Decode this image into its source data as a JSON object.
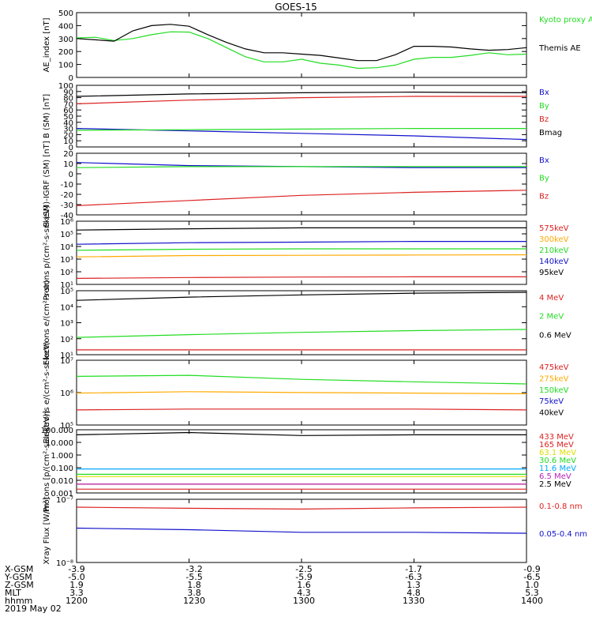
{
  "title": "GOES-15",
  "date_label": "2019 May 02",
  "orbit_rows": [
    "X-GSM",
    "Y-GSM",
    "Z-GSM",
    "MLT",
    "hhmm"
  ],
  "orbit_columns": [
    {
      "values": [
        "-3.9",
        "-5.0",
        "1.9",
        "3.3",
        "1200"
      ]
    },
    {
      "values": [
        "-3.2",
        "-5.5",
        "1.8",
        "3.8",
        "1230"
      ]
    },
    {
      "values": [
        "-2.5",
        "-5.9",
        "1.6",
        "4.3",
        "1300"
      ]
    },
    {
      "values": [
        "-1.7",
        "-6.3",
        "1.3",
        "4.8",
        "1330"
      ]
    },
    {
      "values": [
        "-0.9",
        "-6.5",
        "1.0",
        "5.3",
        "1400"
      ]
    }
  ],
  "colors": {
    "black": "#000000",
    "green": "#22dd22",
    "red": "#dd2222",
    "blue": "#1111cc",
    "orange": "#ffaa00",
    "yellow": "#dddd00",
    "cyan": "#00aaff",
    "magenta": "#bb22bb"
  },
  "chart_data": [
    {
      "type": "line",
      "ylabel": "AE_index [nT]",
      "yscale": "linear",
      "ylim": [
        0,
        500
      ],
      "yticks": [
        "0",
        "100",
        "200",
        "300",
        "400",
        "500"
      ],
      "series": [
        {
          "name": "Kyoto proxy AE",
          "color": "#22dd22",
          "x": [
            1200,
            1205,
            1210,
            1215,
            1220,
            1225,
            1230,
            1235,
            1240,
            1245,
            1250,
            1255,
            1300,
            1305,
            1310,
            1315,
            1320,
            1325,
            1330,
            1335,
            1340,
            1345,
            1350,
            1355,
            1400
          ],
          "y": [
            305,
            310,
            285,
            300,
            330,
            352,
            350,
            300,
            230,
            160,
            120,
            120,
            140,
            110,
            95,
            70,
            75,
            95,
            140,
            155,
            155,
            170,
            190,
            175,
            180
          ]
        },
        {
          "name": "Themis AE",
          "color": "#000000",
          "x": [
            1200,
            1205,
            1210,
            1215,
            1220,
            1225,
            1230,
            1235,
            1240,
            1245,
            1250,
            1255,
            1300,
            1305,
            1310,
            1315,
            1320,
            1325,
            1330,
            1335,
            1340,
            1345,
            1350,
            1355,
            1400
          ],
          "y": [
            300,
            290,
            280,
            360,
            400,
            410,
            395,
            330,
            270,
            220,
            190,
            190,
            180,
            170,
            150,
            130,
            130,
            175,
            240,
            240,
            235,
            220,
            210,
            215,
            230
          ]
        }
      ]
    },
    {
      "type": "line",
      "ylabel": "B (SM) [nT]",
      "yscale": "linear",
      "ylim": [
        0,
        100
      ],
      "yticks": [
        "0",
        "10",
        "20",
        "30",
        "40",
        "50",
        "60",
        "70",
        "80",
        "90",
        "100"
      ],
      "series": [
        {
          "name": "Bx",
          "color": "#1111cc",
          "x": [
            1200,
            1230,
            1300,
            1330,
            1400
          ],
          "y": [
            30,
            26,
            22,
            18,
            12
          ]
        },
        {
          "name": "By",
          "color": "#22dd22",
          "x": [
            1200,
            1230,
            1300,
            1330,
            1400
          ],
          "y": [
            27,
            28,
            29,
            30,
            30
          ]
        },
        {
          "name": "Bz",
          "color": "#dd2222",
          "x": [
            1200,
            1230,
            1300,
            1330,
            1400
          ],
          "y": [
            70,
            76,
            80,
            82,
            82
          ]
        },
        {
          "name": "Bmag",
          "color": "#000000",
          "x": [
            1200,
            1230,
            1300,
            1330,
            1400
          ],
          "y": [
            82,
            86,
            88,
            89,
            88
          ]
        }
      ]
    },
    {
      "type": "line",
      "ylabel": "B (SM)-IGRF (SM) [nT]",
      "yscale": "linear",
      "ylim": [
        -40,
        20
      ],
      "yticks": [
        "-40",
        "-30",
        "-20",
        "-10",
        "0",
        "10",
        "20"
      ],
      "series": [
        {
          "name": "Bx",
          "color": "#1111cc",
          "x": [
            1200,
            1230,
            1300,
            1330,
            1400
          ],
          "y": [
            11,
            8,
            7,
            6,
            6
          ]
        },
        {
          "name": "By",
          "color": "#22dd22",
          "x": [
            1200,
            1230,
            1300,
            1330,
            1400
          ],
          "y": [
            6,
            7,
            7,
            7,
            7
          ]
        },
        {
          "name": "Bz",
          "color": "#dd2222",
          "x": [
            1200,
            1230,
            1300,
            1330,
            1400
          ],
          "y": [
            -31,
            -26,
            -21,
            -18,
            -16
          ]
        }
      ]
    },
    {
      "type": "line",
      "ylabel": "Protons p/(cm²-s-sr-keV)",
      "yscale": "log",
      "ylim": [
        10,
        1000000
      ],
      "yticks": [
        "10¹",
        "10²",
        "10³",
        "10⁴",
        "10⁵",
        "10⁶"
      ],
      "series": [
        {
          "name": "575keV",
          "color": "#dd2222",
          "x": [
            1200,
            1230,
            1300,
            1330,
            1400
          ],
          "y": [
            30,
            35,
            38,
            40,
            40
          ]
        },
        {
          "name": "300keV",
          "color": "#ffaa00",
          "x": [
            1200,
            1230,
            1300,
            1330,
            1400
          ],
          "y": [
            1500,
            1900,
            2000,
            2100,
            2200
          ]
        },
        {
          "name": "210keV",
          "color": "#22dd22",
          "x": [
            1200,
            1230,
            1300,
            1330,
            1400
          ],
          "y": [
            5000,
            6000,
            6500,
            6500,
            6500
          ]
        },
        {
          "name": "140keV",
          "color": "#1111cc",
          "x": [
            1200,
            1230,
            1300,
            1330,
            1400
          ],
          "y": [
            15000,
            20000,
            22000,
            25000,
            25000
          ]
        },
        {
          "name": "95keV",
          "color": "#000000",
          "x": [
            1200,
            1230,
            1300,
            1330,
            1400
          ],
          "y": [
            200000,
            250000,
            300000,
            300000,
            300000
          ]
        }
      ]
    },
    {
      "type": "line",
      "ylabel": "Electrons e/(cm²-s-sr)",
      "yscale": "log",
      "ylim": [
        10,
        100000
      ],
      "yticks": [
        "10¹",
        "10²",
        "10³",
        "10⁴",
        "10⁵"
      ],
      "series": [
        {
          "name": "4 MeV",
          "color": "#dd2222",
          "x": [
            1200,
            1230,
            1300,
            1330,
            1400
          ],
          "y": [
            20,
            20,
            20,
            20,
            20
          ]
        },
        {
          "name": "2 MeV",
          "color": "#22dd22",
          "x": [
            1200,
            1230,
            1300,
            1330,
            1400
          ],
          "y": [
            120,
            180,
            250,
            320,
            380
          ]
        },
        {
          "name": "0.6 MeV",
          "color": "#000000",
          "x": [
            1200,
            1230,
            1300,
            1330,
            1400
          ],
          "y": [
            25000,
            40000,
            55000,
            70000,
            80000
          ]
        }
      ]
    },
    {
      "type": "line",
      "ylabel": "Electrons e/(cm²-s-sr-keV)",
      "yscale": "log",
      "ylim": [
        10000,
        10000000
      ],
      "yticks": [
        "10⁵",
        "10⁶",
        "10⁷"
      ],
      "series": [
        {
          "name": "475keV",
          "color": "#dd2222",
          "x": [
            1200,
            1230,
            1300,
            1330,
            1400
          ],
          "y": [
            50000,
            55000,
            55000,
            55000,
            50000
          ]
        },
        {
          "name": "275keV",
          "color": "#ffaa00",
          "x": [
            1200,
            1230,
            1300,
            1330,
            1400
          ],
          "y": [
            300000,
            350000,
            320000,
            300000,
            280000
          ]
        },
        {
          "name": "150keV",
          "color": "#22dd22",
          "x": [
            1200,
            1230,
            1300,
            1330,
            1400
          ],
          "y": [
            1800000,
            2000000,
            1300000,
            1000000,
            800000
          ]
        },
        {
          "name": "75keV",
          "color": "#1111cc",
          "x": [],
          "y": []
        },
        {
          "name": "40keV",
          "color": "#000000",
          "x": [],
          "y": []
        }
      ]
    },
    {
      "type": "line",
      "ylabel": "Protons [p/(cm²-s-sr-keV)]",
      "yscale": "log",
      "ylim": [
        0.001,
        100
      ],
      "yticks": [
        "0.001",
        "0.010",
        "0.100",
        "1.000",
        "10.000",
        "100.000"
      ],
      "series": [
        {
          "name": "433 MeV",
          "color": "#dd2222",
          "x": [
            1200,
            1400
          ],
          "y": [
            0.002,
            0.002
          ]
        },
        {
          "name": "165 MeV",
          "color": "#dd2222",
          "x": [
            1200,
            1400
          ],
          "y": [
            0.005,
            0.005
          ]
        },
        {
          "name": "63.1 MeV",
          "color": "#dddd00",
          "x": [
            1200,
            1400
          ],
          "y": [
            0.02,
            0.02
          ]
        },
        {
          "name": "30.6 MeV",
          "color": "#22dd22",
          "x": [
            1200,
            1400
          ],
          "y": [
            0.03,
            0.03
          ]
        },
        {
          "name": "11.6 MeV",
          "color": "#00aaff",
          "x": [
            1200,
            1400
          ],
          "y": [
            0.08,
            0.08
          ]
        },
        {
          "name": "6.5 MeV",
          "color": "#bb22bb",
          "x": [
            1200,
            1400
          ],
          "y": [
            0.005,
            0.005
          ]
        },
        {
          "name": "2.5 MeV",
          "color": "#000000",
          "x": [
            1200,
            1230,
            1300,
            1330,
            1400
          ],
          "y": [
            40,
            60,
            35,
            40,
            40
          ]
        }
      ]
    },
    {
      "type": "line",
      "ylabel": "Xray Flux [W/m²]",
      "yscale": "log",
      "ylim": [
        1e-08,
        1e-07
      ],
      "yticks": [
        "10⁻⁸",
        "10⁻⁷"
      ],
      "series": [
        {
          "name": "0.1-0.8 nm",
          "color": "#dd2222",
          "x": [
            1200,
            1230,
            1300,
            1330,
            1400
          ],
          "y": [
            7.5e-08,
            7.2e-08,
            7e-08,
            7.3e-08,
            7.5e-08
          ]
        },
        {
          "name": "0.05-0.4 nm",
          "color": "#1111cc",
          "x": [
            1200,
            1230,
            1300,
            1330,
            1400
          ],
          "y": [
            3.5e-08,
            3.3e-08,
            3e-08,
            3e-08,
            2.9e-08
          ]
        }
      ]
    }
  ]
}
